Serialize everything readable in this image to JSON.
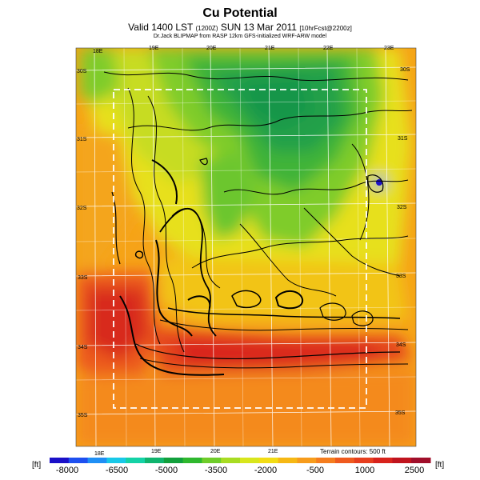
{
  "header": {
    "title": "Cu Potential",
    "subtitle_main": "Valid 1400 LST",
    "subtitle_small1": "(1200Z)",
    "subtitle_date": "SUN 13 Mar 2011",
    "subtitle_small2": "[10hrFcst@2200z]",
    "caption": "Dr.Jack BLIPMAP from RASP 12km GFS-initialized WRF-ARW model"
  },
  "map": {
    "lon_labels_top": [
      "18E",
      "19E",
      "20E",
      "21E",
      "22E",
      "23E"
    ],
    "lon_labels_bottom": [
      "18E",
      "19E",
      "20E",
      "21E"
    ],
    "lat_labels_left": [
      "30S",
      "31S",
      "32S",
      "33S",
      "34S",
      "35S"
    ],
    "lat_labels_right": [
      "30S",
      "31S",
      "32S",
      "33S",
      "34S",
      "35S"
    ],
    "terrain_note": "Terrain contours: 500 ft"
  },
  "colorbar": {
    "unit_left": "[ft]",
    "unit_right": "[ft]",
    "ticks": [
      "-8000",
      "-6500",
      "-5000",
      "-3500",
      "-2000",
      "-500",
      "1000",
      "2500"
    ],
    "colors": [
      "#1a10c8",
      "#1e50f0",
      "#1f8ff5",
      "#18c8e8",
      "#14d2a6",
      "#10b46e",
      "#12a03c",
      "#2fb82e",
      "#6fcd2a",
      "#a8dc22",
      "#d8e61c",
      "#f2dc14",
      "#f6b814",
      "#f79c1c",
      "#f57d1e",
      "#ef5a1e",
      "#e63e1e",
      "#d8231c",
      "#c0141e",
      "#a00e2a"
    ]
  }
}
